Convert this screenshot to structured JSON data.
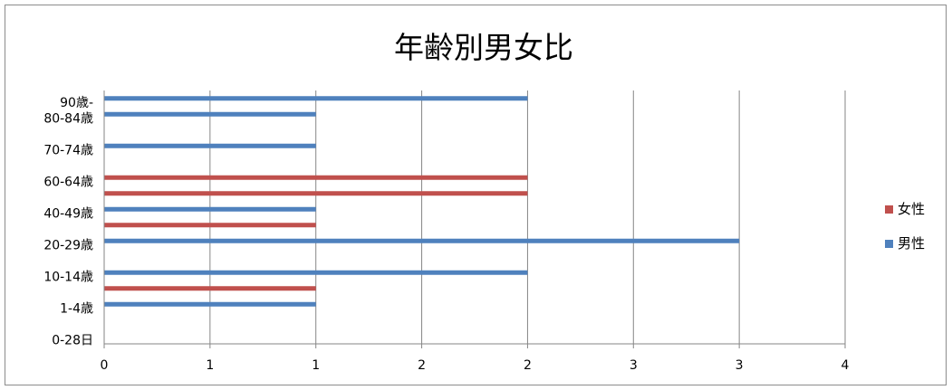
{
  "chart_data": {
    "type": "bar",
    "orientation": "horizontal",
    "title": "年齢別男女比",
    "xlabel": "",
    "ylabel": "",
    "xlim": [
      0,
      3.5
    ],
    "x_tick_labels": [
      "0",
      "1",
      "1",
      "2",
      "2",
      "3",
      "3",
      "4"
    ],
    "grid": "vertical",
    "legend_position": "right",
    "row_values": [
      0,
      0,
      1,
      1,
      2,
      2,
      3,
      3,
      4,
      4,
      5,
      6,
      7,
      7,
      8,
      9
    ],
    "category_labels": [
      "0-28日",
      "1-4歳",
      "10-14歳",
      "20-29歳",
      "40-49歳",
      "60-64歳",
      "70-74歳",
      "80-84歳",
      "90歳-"
    ],
    "category_label_rows": [
      1,
      3,
      5,
      7,
      9,
      11,
      13,
      15,
      16
    ],
    "series": [
      {
        "name": "女性",
        "color": "#c0504d",
        "values": [
          0,
          0,
          0,
          1,
          0,
          0,
          0,
          1,
          0,
          2,
          2,
          0,
          0,
          0,
          0,
          0
        ]
      },
      {
        "name": "男性",
        "color": "#4f81bd",
        "values": [
          0,
          0,
          1,
          0,
          2,
          0,
          3,
          0,
          1,
          0,
          0,
          0,
          1,
          0,
          1,
          2
        ]
      }
    ]
  }
}
